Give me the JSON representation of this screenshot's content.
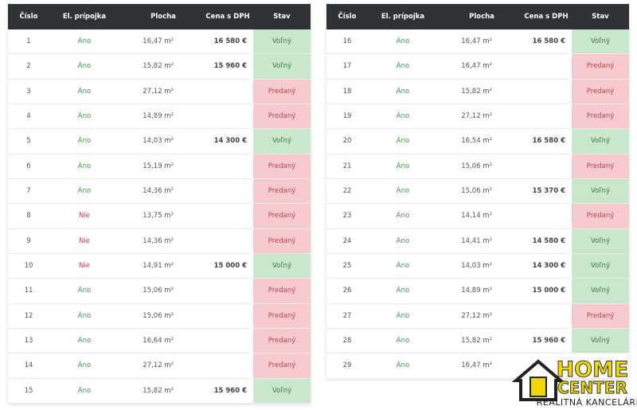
{
  "tables": [
    {
      "header": [
        "Číslo",
        "El. prípojka",
        "Plocha",
        "Cena s DPH",
        "Stav"
      ],
      "rows": [
        [
          1,
          "Áno",
          "16,47 m²",
          "16 580 €",
          "Voľný"
        ],
        [
          2,
          "Áno",
          "15,82 m²",
          "15 960 €",
          "Voľný"
        ],
        [
          3,
          "Áno",
          "27,12 m²",
          null,
          "Predaný"
        ],
        [
          4,
          "Áno",
          "14,89 m²",
          null,
          "Predaný"
        ],
        [
          5,
          "Áno",
          "14,03 m²",
          "14 300 €",
          "Voľný"
        ],
        [
          6,
          "Áno",
          "15,19 m²",
          null,
          "Predaný"
        ],
        [
          7,
          "Áno",
          "14,36 m²",
          null,
          "Predaný"
        ],
        [
          8,
          "Nie",
          "13,75 m²",
          null,
          "Predaný"
        ],
        [
          9,
          "Nie",
          "14,36 m²",
          null,
          "Predaný"
        ],
        [
          10,
          "Nie",
          "14,91 m²",
          "15 000 €",
          "Voľný"
        ],
        [
          11,
          "Áno",
          "15,06 m²",
          null,
          "Predaný"
        ],
        [
          12,
          "Áno",
          "15,06 m²",
          null,
          "Predaný"
        ],
        [
          13,
          "Áno",
          "16,64 m²",
          null,
          "Predaný"
        ],
        [
          14,
          "Áno",
          "27,12 m²",
          null,
          "Predaný"
        ],
        [
          15,
          "Áno",
          "15,82 m²",
          "15 960 €",
          "Voľný"
        ]
      ]
    },
    {
      "header": [
        "Číslo",
        "El. prípojka",
        "Plocha",
        "Cena s DPH",
        "Stav"
      ],
      "rows": [
        [
          16,
          "Áno",
          "16,47 m²",
          "16 580 €",
          "Voľný"
        ],
        [
          17,
          "Áno",
          "16,47 m²",
          null,
          "Predaný"
        ],
        [
          18,
          "Áno",
          "15,82 m²",
          null,
          "Predaný"
        ],
        [
          19,
          "Áno",
          "27,12 m²",
          null,
          "Predaný"
        ],
        [
          20,
          "Áno",
          "16,54 m²",
          "16 580 €",
          "Voľný"
        ],
        [
          21,
          "Áno",
          "15,06 m²",
          null,
          "Predaný"
        ],
        [
          22,
          "Áno",
          "15,06 m²",
          "15 370 €",
          "Voľný"
        ],
        [
          23,
          "Áno",
          "14,14 m²",
          null,
          "Predaný"
        ],
        [
          24,
          "Áno",
          "14,41 m²",
          "14 580 €",
          "Voľný"
        ],
        [
          25,
          "Áno",
          "14,03 m²",
          "14 300 €",
          "Voľný"
        ],
        [
          26,
          "Áno",
          "14,89 m²",
          "15 000 €",
          "Voľný"
        ],
        [
          27,
          "Áno",
          "27,12 m²",
          null,
          "Predaný"
        ],
        [
          28,
          "Áno",
          "15,82 m²",
          "15 960 €",
          "Voľný"
        ],
        [
          29,
          "Áno",
          "16,47 m²",
          null,
          null
        ]
      ]
    }
  ],
  "logo": {
    "line1": "HOME",
    "line2": "CENTER",
    "tagline": "REALITNÁ KANCELÁRIA"
  }
}
